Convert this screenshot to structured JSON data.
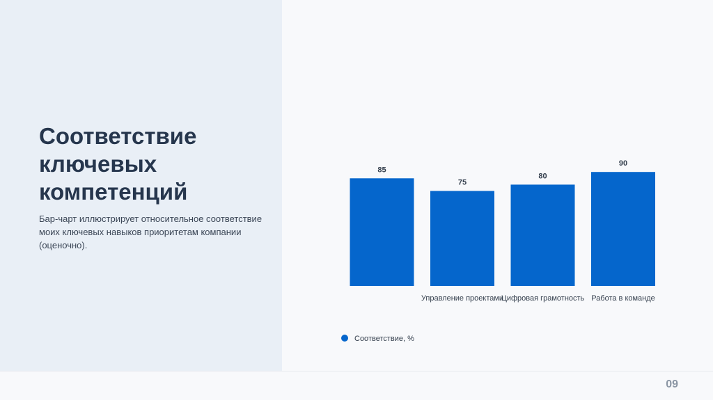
{
  "title": "Соответствие ключевых компетенций",
  "description": "Бар-чарт иллюстрирует относительное соответствие моих ключевых навыков приоритетам компании (оценочно).",
  "page_number": "09",
  "colors": {
    "bar": "#0566cc",
    "left_panel": "#e9eff6"
  },
  "chart_data": {
    "type": "bar",
    "categories": [
      "",
      "Управление проектами",
      "Цифровая грамотность",
      "Работа в команде"
    ],
    "series": [
      {
        "name": "Соответствие, %",
        "values": [
          85,
          75,
          80,
          90
        ],
        "color": "#0566cc"
      }
    ],
    "data_labels": [
      "85",
      "75",
      "80",
      "90"
    ],
    "ylim": [
      0,
      100
    ],
    "grid": false,
    "legend_position": "bottom-left"
  }
}
